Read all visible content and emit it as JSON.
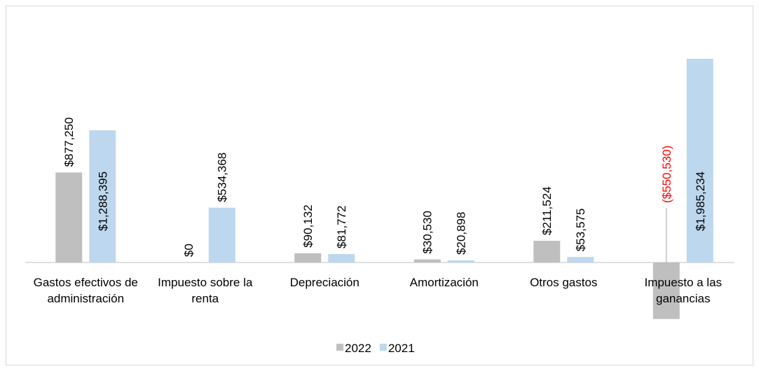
{
  "chart_data": {
    "type": "bar",
    "categories": [
      "Gastos efectivos de administración",
      "Impuesto sobre la renta",
      "Depreciación",
      "Amortización",
      "Otros gastos",
      "Impuesto a las ganancias"
    ],
    "series": [
      {
        "name": "2022",
        "color": "#bfbfbf",
        "values": [
          877250,
          0,
          90132,
          30530,
          211524,
          -550530
        ],
        "value_labels": [
          "$877,250",
          "$0",
          "$90,132",
          "$30,530",
          "$211,524",
          "($550,530)"
        ]
      },
      {
        "name": "2021",
        "color": "#bdd7ee",
        "values": [
          1288395,
          534368,
          81772,
          20898,
          53575,
          1985234
        ],
        "value_labels": [
          "$1,288,395",
          "$534,368",
          "$81,772",
          "$20,898",
          "$53,575",
          "$1,985,234"
        ]
      }
    ],
    "negative_label_color": "#ff0000",
    "legend": "bottom"
  }
}
